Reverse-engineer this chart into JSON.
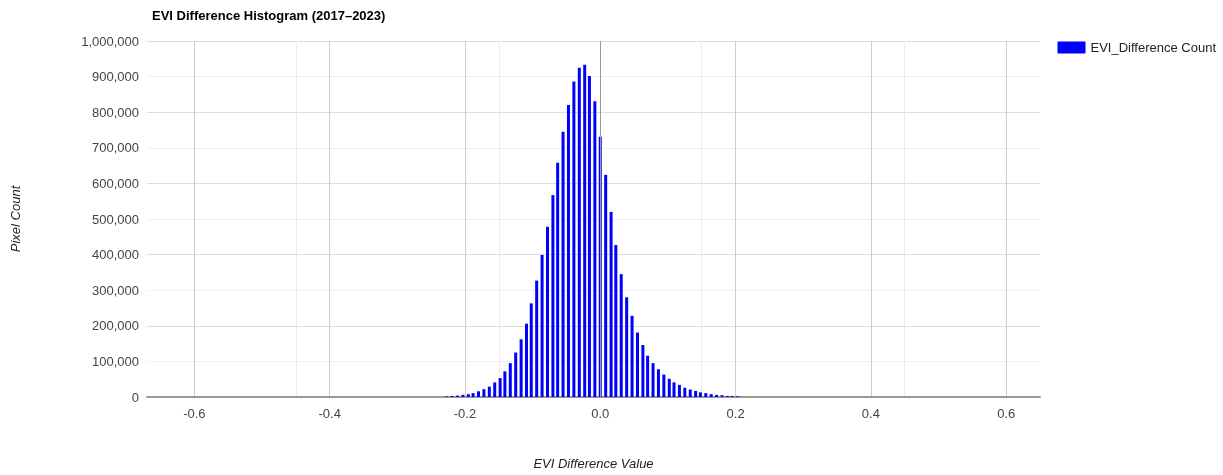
{
  "chart_data": {
    "type": "bar",
    "title": "EVI Difference Histogram (2017–2023)",
    "xlabel": "EVI Difference Value",
    "ylabel": "Pixel Count",
    "x": [
      -0.227,
      -0.219,
      -0.211,
      -0.203,
      -0.195,
      -0.188,
      -0.18,
      -0.172,
      -0.164,
      -0.156,
      -0.148,
      -0.141,
      -0.133,
      -0.125,
      -0.117,
      -0.109,
      -0.102,
      -0.094,
      -0.086,
      -0.078,
      -0.07,
      -0.063,
      -0.055,
      -0.047,
      -0.039,
      -0.031,
      -0.023,
      -0.016,
      -0.008,
      0,
      0.008,
      0.016,
      0.023,
      0.031,
      0.039,
      0.047,
      0.055,
      0.063,
      0.07,
      0.078,
      0.086,
      0.094,
      0.102,
      0.109,
      0.117,
      0.125,
      0.133,
      0.141,
      0.148,
      0.156,
      0.164,
      0.172,
      0.18,
      0.188,
      0.195,
      0.203
    ],
    "series": [
      {
        "name": "EVI_Difference Count",
        "color": "#0000ff",
        "values": [
          2000,
          3000,
          4000,
          6000,
          8000,
          11000,
          16000,
          22000,
          29000,
          41000,
          53000,
          72000,
          95000,
          125000,
          162000,
          206000,
          263000,
          327000,
          399000,
          478000,
          567000,
          658000,
          745000,
          820000,
          886000,
          925000,
          933000,
          902000,
          831000,
          731000,
          624000,
          520000,
          427000,
          345000,
          280000,
          228000,
          181000,
          146000,
          116000,
          95000,
          78000,
          63000,
          51000,
          41000,
          34000,
          26000,
          21000,
          17000,
          13000,
          11000,
          8000,
          6000,
          5000,
          3000,
          3000,
          2000
        ]
      }
    ],
    "xlim": [
      -0.67,
      0.65
    ],
    "xticks": [
      -0.6,
      -0.4,
      -0.2,
      {
        "value": 0,
        "label": "0.0"
      },
      0.2,
      0.4,
      0.6
    ],
    "ylim": [
      0,
      1000000
    ],
    "yticks": [
      0,
      {
        "value": 100000,
        "label": "100,000"
      },
      {
        "value": 200000,
        "label": "200,000"
      },
      {
        "value": 300000,
        "label": "300,000"
      },
      {
        "value": 400000,
        "label": "400,000"
      },
      {
        "value": 500000,
        "label": "500,000"
      },
      {
        "value": 600000,
        "label": "600,000"
      },
      {
        "value": 700000,
        "label": "700,000"
      },
      {
        "value": 800000,
        "label": "800,000"
      },
      {
        "value": 900000,
        "label": "900,000"
      },
      {
        "value": 1000000,
        "label": "1,000,000"
      }
    ],
    "ref_lines": [
      {
        "axis": "x",
        "value": 0,
        "color": "#999999"
      }
    ],
    "grid": true,
    "legend": "top right"
  }
}
